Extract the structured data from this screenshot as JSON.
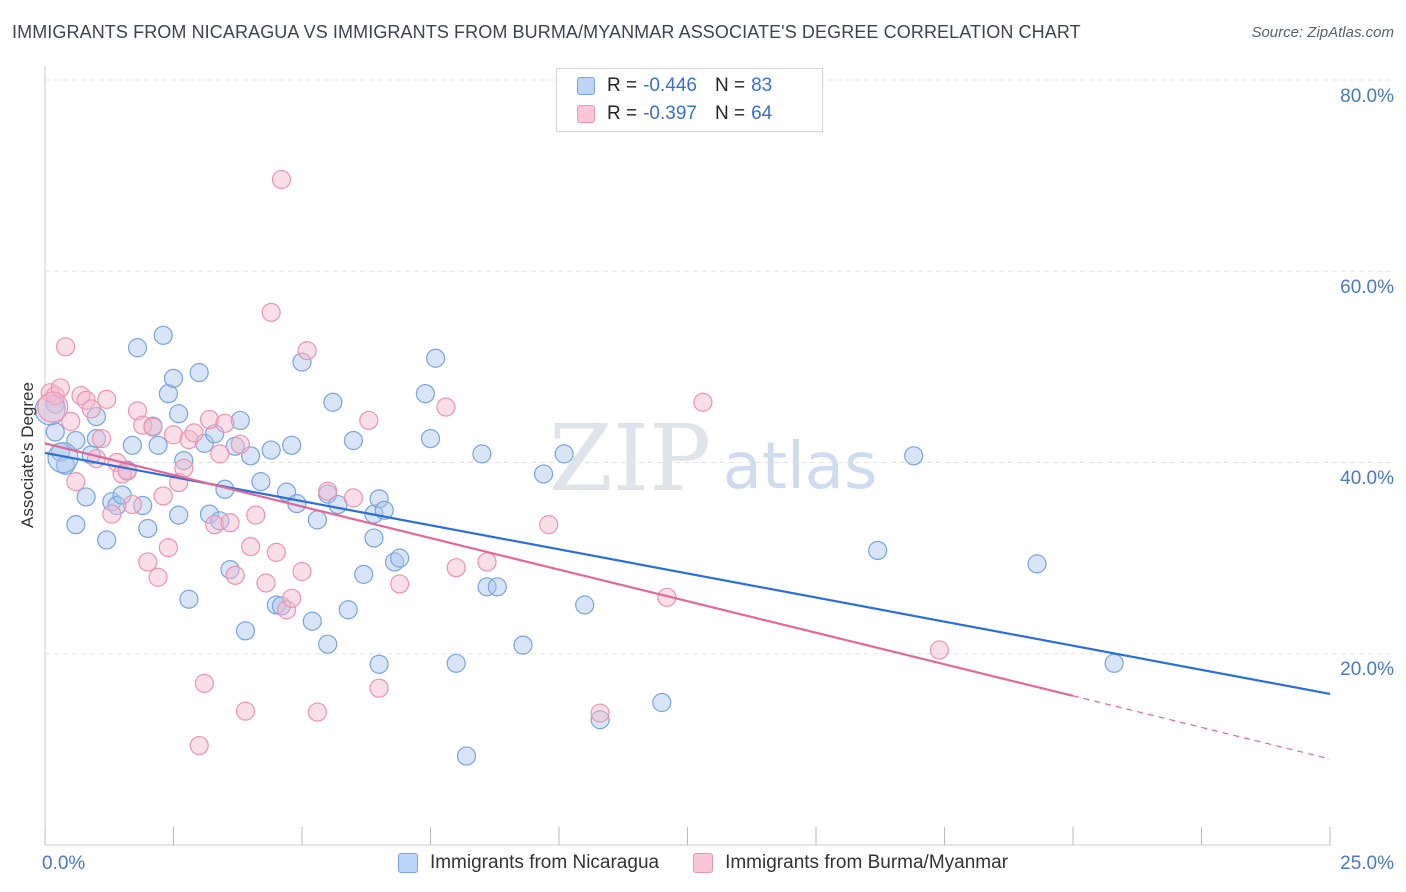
{
  "header": {
    "title": "IMMIGRANTS FROM NICARAGUA VS IMMIGRANTS FROM BURMA/MYANMAR ASSOCIATE'S DEGREE CORRELATION CHART",
    "source": "Source: ZipAtlas.com"
  },
  "watermark": {
    "zip": "ZIP",
    "atlas": "atlas"
  },
  "stats": {
    "row1": {
      "r_label": "R =",
      "r_value": "-0.446",
      "n_label": "N =",
      "n_value": "83"
    },
    "row2": {
      "r_label": "R =",
      "r_value": "-0.397",
      "n_label": "N =",
      "n_value": "64"
    }
  },
  "legend": {
    "nicaragua": "Immigrants from Nicaragua",
    "burma": "Immigrants from Burma/Myanmar"
  },
  "axes": {
    "ylabel": "Associate's Degree",
    "y_ticks": [
      "20.0%",
      "40.0%",
      "60.0%",
      "80.0%"
    ],
    "x_left": "0.0%",
    "x_right": "25.0%"
  },
  "colors": {
    "nicaragua_fill": "#a8c6f0",
    "nicaragua_stroke": "#7aa3e0",
    "nicaragua_line": "#2a6fd6",
    "burma_fill": "#f6b8cb",
    "burma_stroke": "#ec93b0",
    "burma_line": "#e2679a",
    "tick_label": "#4a78c8",
    "grid": "#e3e3e3"
  },
  "chart_data": {
    "type": "scatter",
    "xlabel": "",
    "ylabel": "Associate's Degree",
    "xlim": [
      0,
      25
    ],
    "ylim": [
      0,
      80
    ],
    "y_ticks": [
      20,
      40,
      60,
      80
    ],
    "grid": "horizontal dashed",
    "legend_placement": "bottom-center",
    "series": [
      {
        "name": "Immigrants from Nicaragua",
        "r": -0.446,
        "n": 83,
        "trend": {
          "x": [
            0,
            25
          ],
          "y": [
            41,
            15.8
          ]
        },
        "points": [
          [
            0.2,
            46.1
          ],
          [
            0.2,
            43.2
          ],
          [
            0.3,
            41.1
          ],
          [
            0.4,
            39.7
          ],
          [
            0.6,
            42.3
          ],
          [
            0.6,
            33.5
          ],
          [
            0.8,
            36.4
          ],
          [
            0.9,
            40.8
          ],
          [
            1.0,
            44.8
          ],
          [
            1.0,
            42.5
          ],
          [
            1.2,
            31.9
          ],
          [
            1.3,
            35.9
          ],
          [
            1.4,
            35.5
          ],
          [
            1.5,
            36.6
          ],
          [
            1.6,
            39.2
          ],
          [
            1.7,
            41.8
          ],
          [
            1.8,
            52.0
          ],
          [
            1.9,
            35.5
          ],
          [
            2.0,
            33.1
          ],
          [
            2.1,
            43.8
          ],
          [
            2.2,
            41.8
          ],
          [
            2.3,
            53.3
          ],
          [
            2.4,
            47.2
          ],
          [
            2.5,
            48.8
          ],
          [
            2.6,
            34.5
          ],
          [
            2.6,
            45.1
          ],
          [
            2.7,
            40.2
          ],
          [
            2.8,
            25.7
          ],
          [
            3.0,
            49.4
          ],
          [
            3.1,
            42.0
          ],
          [
            3.2,
            34.6
          ],
          [
            3.3,
            43.0
          ],
          [
            3.4,
            33.9
          ],
          [
            3.5,
            37.2
          ],
          [
            3.6,
            28.8
          ],
          [
            3.7,
            41.7
          ],
          [
            3.8,
            44.4
          ],
          [
            3.9,
            22.4
          ],
          [
            4.0,
            40.7
          ],
          [
            4.2,
            38.0
          ],
          [
            4.4,
            41.3
          ],
          [
            4.5,
            25.1
          ],
          [
            4.6,
            25.0
          ],
          [
            4.7,
            36.9
          ],
          [
            4.8,
            41.8
          ],
          [
            4.9,
            35.7
          ],
          [
            5.0,
            50.5
          ],
          [
            5.2,
            23.4
          ],
          [
            5.3,
            34.0
          ],
          [
            5.5,
            21.0
          ],
          [
            5.5,
            36.7
          ],
          [
            5.6,
            46.3
          ],
          [
            5.7,
            35.6
          ],
          [
            5.9,
            24.6
          ],
          [
            6.0,
            42.3
          ],
          [
            6.2,
            28.3
          ],
          [
            6.4,
            32.1
          ],
          [
            6.4,
            34.6
          ],
          [
            6.5,
            36.2
          ],
          [
            6.5,
            18.9
          ],
          [
            6.6,
            35.0
          ],
          [
            6.8,
            29.6
          ],
          [
            6.9,
            30.0
          ],
          [
            7.4,
            47.2
          ],
          [
            7.5,
            42.5
          ],
          [
            7.6,
            50.9
          ],
          [
            8.0,
            19.0
          ],
          [
            8.2,
            9.3
          ],
          [
            8.5,
            40.9
          ],
          [
            8.6,
            27.0
          ],
          [
            8.8,
            27.0
          ],
          [
            9.3,
            20.9
          ],
          [
            9.7,
            38.8
          ],
          [
            10.1,
            40.9
          ],
          [
            10.5,
            25.1
          ],
          [
            10.8,
            13.1
          ],
          [
            12.0,
            14.9
          ],
          [
            16.2,
            30.8
          ],
          [
            16.9,
            40.7
          ],
          [
            19.3,
            29.4
          ],
          [
            20.8,
            19.0
          ],
          [
            0.1,
            45.5
          ],
          [
            0.35,
            40.5
          ]
        ]
      },
      {
        "name": "Immigrants from Burma/Myanmar",
        "r": -0.397,
        "n": 64,
        "trend": {
          "x": [
            0,
            20
          ],
          "y": [
            42,
            15.6
          ]
        },
        "trend_dashed": {
          "x": [
            20,
            25
          ],
          "y": [
            15.6,
            9
          ]
        },
        "points": [
          [
            0.1,
            47.3
          ],
          [
            0.2,
            47.0
          ],
          [
            0.3,
            47.8
          ],
          [
            0.4,
            52.1
          ],
          [
            0.5,
            44.3
          ],
          [
            0.6,
            38.0
          ],
          [
            0.7,
            47.0
          ],
          [
            0.8,
            46.5
          ],
          [
            0.9,
            45.6
          ],
          [
            1.0,
            40.4
          ],
          [
            1.1,
            42.5
          ],
          [
            1.2,
            46.6
          ],
          [
            1.3,
            34.6
          ],
          [
            1.4,
            40.0
          ],
          [
            1.5,
            38.8
          ],
          [
            1.6,
            39.1
          ],
          [
            1.7,
            35.6
          ],
          [
            1.8,
            45.4
          ],
          [
            1.9,
            43.9
          ],
          [
            2.0,
            29.6
          ],
          [
            2.1,
            43.7
          ],
          [
            2.2,
            28.0
          ],
          [
            2.3,
            36.5
          ],
          [
            2.4,
            31.1
          ],
          [
            2.5,
            42.9
          ],
          [
            2.6,
            37.9
          ],
          [
            2.7,
            39.4
          ],
          [
            2.8,
            42.4
          ],
          [
            2.9,
            43.1
          ],
          [
            3.0,
            10.4
          ],
          [
            3.1,
            16.9
          ],
          [
            3.2,
            44.5
          ],
          [
            3.3,
            33.5
          ],
          [
            3.4,
            40.9
          ],
          [
            3.5,
            44.1
          ],
          [
            3.6,
            33.7
          ],
          [
            3.7,
            28.2
          ],
          [
            3.8,
            41.9
          ],
          [
            3.9,
            14.0
          ],
          [
            4.0,
            31.2
          ],
          [
            4.1,
            34.5
          ],
          [
            4.3,
            27.4
          ],
          [
            4.4,
            55.7
          ],
          [
            4.5,
            30.6
          ],
          [
            4.6,
            69.6
          ],
          [
            4.7,
            24.6
          ],
          [
            4.8,
            25.8
          ],
          [
            5.0,
            28.6
          ],
          [
            5.1,
            51.7
          ],
          [
            5.3,
            13.9
          ],
          [
            5.5,
            37.0
          ],
          [
            6.0,
            36.3
          ],
          [
            6.3,
            44.4
          ],
          [
            6.5,
            16.4
          ],
          [
            6.9,
            27.3
          ],
          [
            7.8,
            45.8
          ],
          [
            8.0,
            29.0
          ],
          [
            8.6,
            29.6
          ],
          [
            9.8,
            33.5
          ],
          [
            10.8,
            13.8
          ],
          [
            12.1,
            25.9
          ],
          [
            12.8,
            46.3
          ],
          [
            17.4,
            20.4
          ],
          [
            0.15,
            45.8
          ]
        ]
      }
    ]
  }
}
